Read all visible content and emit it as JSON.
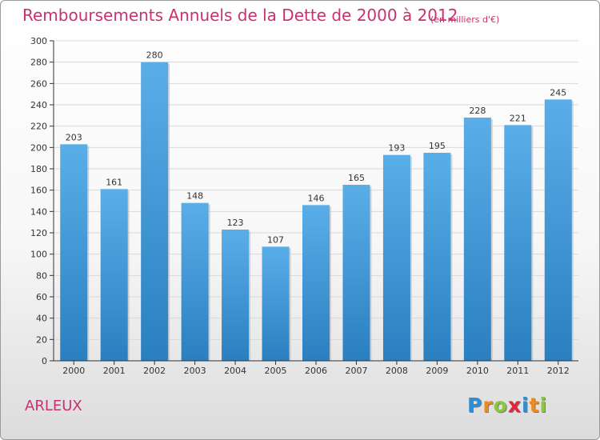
{
  "header": {
    "title": "Remboursements Annuels de la Dette de 2000 à 2012",
    "unit_note": "(en milliers d'€)"
  },
  "footer": {
    "commune": "ARLEUX",
    "brand": "Proxiti",
    "brand_letters": [
      {
        "char": "P",
        "color": "#2f8fd6"
      },
      {
        "char": "r",
        "color": "#f08a1c"
      },
      {
        "char": "o",
        "color": "#8cc63f"
      },
      {
        "char": "x",
        "color": "#e2233b"
      },
      {
        "char": "i",
        "color": "#2f8fd6"
      },
      {
        "char": "t",
        "color": "#f08a1c"
      },
      {
        "char": "i",
        "color": "#8cc63f"
      }
    ]
  },
  "colors": {
    "title": "#c8326e",
    "bar_top": "#5aaee8",
    "bar_bottom": "#2a7fc0",
    "grid": "#d9d9d9",
    "axis": "#333333"
  },
  "chart_data": {
    "type": "bar",
    "title": "Remboursements Annuels de la Dette de 2000 à 2012",
    "subtitle": "(en milliers d'€)",
    "xlabel": "",
    "ylabel": "",
    "categories": [
      "2000",
      "2001",
      "2002",
      "2003",
      "2004",
      "2005",
      "2006",
      "2007",
      "2008",
      "2009",
      "2010",
      "2011",
      "2012"
    ],
    "values": [
      203,
      161,
      280,
      148,
      123,
      107,
      146,
      165,
      193,
      195,
      228,
      221,
      245
    ],
    "ylim": [
      0,
      300
    ],
    "yticks": [
      0,
      20,
      40,
      60,
      80,
      100,
      120,
      140,
      160,
      180,
      200,
      220,
      240,
      260,
      280,
      300
    ],
    "grid": true,
    "data_labels": true,
    "legend": "none"
  }
}
